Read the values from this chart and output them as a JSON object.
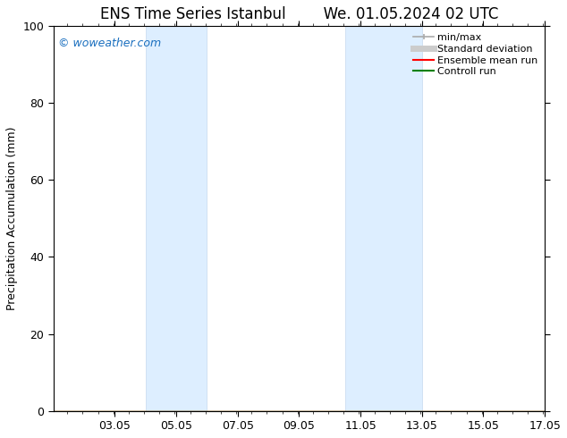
{
  "title_left": "ENS Time Series Istanbul",
  "title_right": "We. 01.05.2024 02 UTC",
  "ylabel": "Precipitation Accumulation (mm)",
  "ylim": [
    0,
    100
  ],
  "yticks": [
    0,
    20,
    40,
    60,
    80,
    100
  ],
  "xlim_start": 1.05,
  "xlim_end": 17.05,
  "xtick_labels": [
    "03.05",
    "05.05",
    "07.05",
    "09.05",
    "11.05",
    "13.05",
    "15.05",
    "17.05"
  ],
  "xtick_positions": [
    3.05,
    5.05,
    7.05,
    9.05,
    11.05,
    13.05,
    15.05,
    17.05
  ],
  "shaded_regions": [
    {
      "xmin": 4.05,
      "xmax": 6.05
    },
    {
      "xmin": 10.55,
      "xmax": 13.05
    }
  ],
  "shaded_color": "#ddeeff",
  "shaded_edgecolor": "#c5d8ee",
  "watermark_text": "© woweather.com",
  "watermark_color": "#1a6fbf",
  "legend_items": [
    {
      "label": "min/max",
      "color": "#aaaaaa",
      "lw": 1.5
    },
    {
      "label": "Standard deviation",
      "color": "#cccccc",
      "lw": 5
    },
    {
      "label": "Ensemble mean run",
      "color": "red",
      "lw": 1.5
    },
    {
      "label": "Controll run",
      "color": "green",
      "lw": 1.5
    }
  ],
  "bg_color": "#ffffff",
  "title_fontsize": 12,
  "tick_fontsize": 9,
  "ylabel_fontsize": 9,
  "legend_fontsize": 8
}
